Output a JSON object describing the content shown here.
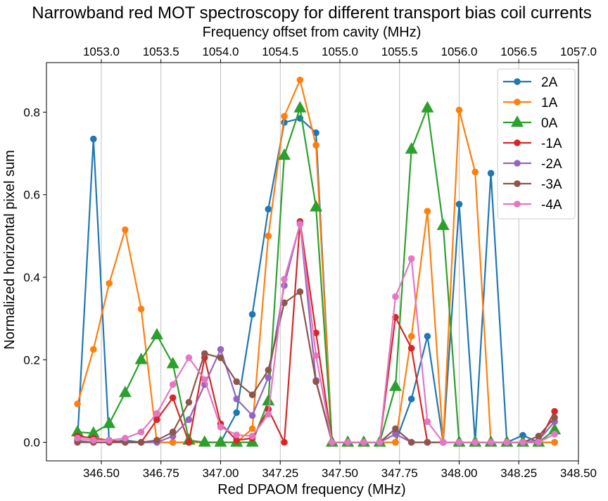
{
  "chart_data": {
    "type": "line",
    "title": "Narrowband red MOT spectroscopy for different transport bias coil currents",
    "xlabel": "Red DPAOM frequency (MHz)",
    "ylabel": "Normalized horizontal pixel sum",
    "x2label": "Frequency offset from cavity (MHz)",
    "xlim": [
      346.27,
      348.5
    ],
    "ylim": [
      -0.045,
      0.92
    ],
    "x2lim": [
      1052.54,
      1057.0
    ],
    "xticks": [
      346.5,
      346.75,
      347.0,
      347.25,
      347.5,
      347.75,
      348.0,
      348.25,
      348.5
    ],
    "xtick_labels": [
      "346.50",
      "346.75",
      "347.00",
      "347.25",
      "347.50",
      "347.75",
      "348.00",
      "348.25",
      "348.50"
    ],
    "yticks": [
      0.0,
      0.2,
      0.4,
      0.6,
      0.8
    ],
    "ytick_labels": [
      "0.0",
      "0.2",
      "0.4",
      "0.6",
      "0.8"
    ],
    "x2ticks": [
      1053.0,
      1053.5,
      1054.0,
      1054.5,
      1055.0,
      1055.5,
      1056.0,
      1056.5,
      1057.0
    ],
    "x2tick_labels": [
      "1053.0",
      "1053.5",
      "1054.0",
      "1054.5",
      "1055.0",
      "1055.5",
      "1056.0",
      "1056.5",
      "1057.0"
    ],
    "grid": "vertical lines at top-axis ticks",
    "legend_position": "top-right",
    "series": [
      {
        "name": "2A",
        "color": "#1f77b4",
        "marker": "circle",
        "x": [
          346.4,
          346.467,
          346.533,
          346.6,
          346.667,
          346.733,
          346.8,
          346.867,
          346.933,
          347.0,
          347.067,
          347.133,
          347.2,
          347.267,
          347.333,
          347.4,
          347.467,
          347.533,
          347.6,
          347.667,
          347.733,
          347.8,
          347.867,
          347.933,
          348.0,
          348.067,
          348.133,
          348.2,
          348.267,
          348.333,
          348.4
        ],
        "y": [
          0.005,
          0.735,
          0.0,
          0.005,
          0.0,
          0.0,
          0.0,
          0.0,
          0.0,
          0.0,
          0.072,
          0.31,
          0.565,
          0.775,
          0.785,
          0.75,
          0.0,
          0.0,
          0.0,
          0.0,
          0.0,
          0.105,
          0.257,
          0.0,
          0.577,
          0.0,
          0.652,
          0.0,
          0.017,
          0.0,
          0.0
        ]
      },
      {
        "name": "1A",
        "color": "#ff7f0e",
        "marker": "circle",
        "x": [
          346.4,
          346.467,
          346.533,
          346.6,
          346.667,
          346.733,
          346.8,
          346.867,
          346.933,
          347.0,
          347.067,
          347.133,
          347.2,
          347.267,
          347.333,
          347.4,
          347.467,
          347.533,
          347.6,
          347.667,
          347.733,
          347.8,
          347.867,
          347.933,
          348.0,
          348.067,
          348.133,
          348.2,
          348.267,
          348.333,
          348.4
        ],
        "y": [
          0.093,
          0.225,
          0.385,
          0.515,
          0.323,
          0.0,
          0.0,
          0.0,
          0.0,
          0.0,
          0.0,
          0.033,
          0.5,
          0.79,
          0.878,
          0.72,
          0.0,
          0.0,
          0.0,
          0.0,
          0.0,
          0.257,
          0.56,
          0.0,
          0.805,
          0.655,
          0.0,
          0.0,
          0.0,
          0.0,
          0.0
        ]
      },
      {
        "name": "0A",
        "color": "#2ca02c",
        "marker": "triangle",
        "x": [
          346.4,
          346.467,
          346.533,
          346.6,
          346.667,
          346.733,
          346.8,
          346.867,
          346.933,
          347.0,
          347.067,
          347.133,
          347.2,
          347.267,
          347.333,
          347.4,
          347.467,
          347.533,
          347.6,
          347.667,
          347.733,
          347.8,
          347.867,
          347.933,
          348.0,
          348.067,
          348.133,
          348.2,
          348.267,
          348.333,
          348.4
        ],
        "y": [
          0.025,
          0.022,
          0.045,
          0.12,
          0.2,
          0.26,
          0.19,
          0.005,
          0.0,
          0.0,
          0.0,
          0.0,
          0.1,
          0.695,
          0.81,
          0.57,
          0.0,
          0.0,
          0.0,
          0.0,
          0.135,
          0.71,
          0.81,
          0.525,
          0.0,
          0.0,
          0.0,
          0.0,
          0.0,
          0.0,
          0.03
        ]
      },
      {
        "name": "-1A",
        "color": "#d62728",
        "marker": "circle",
        "x": [
          346.4,
          346.467,
          346.533,
          346.6,
          346.667,
          346.733,
          346.8,
          346.867,
          346.933,
          347.0,
          347.067,
          347.133,
          347.2,
          347.267,
          347.333,
          347.4,
          347.467,
          347.533,
          347.6,
          347.667,
          347.733,
          347.8,
          347.867,
          347.933,
          348.0,
          348.067,
          348.133,
          348.2,
          348.267,
          348.333,
          348.4
        ],
        "y": [
          0.015,
          0.01,
          0.005,
          0.0,
          0.0,
          0.055,
          0.108,
          0.0,
          0.205,
          0.045,
          0.005,
          0.01,
          0.08,
          0.0,
          0.535,
          0.265,
          0.0,
          0.0,
          0.0,
          0.0,
          0.303,
          0.228,
          0.0,
          0.0,
          0.0,
          0.0,
          0.0,
          0.0,
          0.0,
          0.0,
          0.075
        ]
      },
      {
        "name": "-2A",
        "color": "#9467bd",
        "marker": "circle",
        "x": [
          346.4,
          346.467,
          346.533,
          346.6,
          346.667,
          346.733,
          346.8,
          346.867,
          346.933,
          347.0,
          347.067,
          347.133,
          347.2,
          347.267,
          347.333,
          347.4,
          347.467,
          347.533,
          347.6,
          347.667,
          347.733,
          347.8,
          347.867,
          347.933,
          348.0,
          348.067,
          348.133,
          348.2,
          348.267,
          348.333,
          348.4
        ],
        "y": [
          0.005,
          0.0,
          0.0,
          0.0,
          0.0,
          0.0,
          0.015,
          0.055,
          0.14,
          0.225,
          0.105,
          0.065,
          0.157,
          0.38,
          0.53,
          0.15,
          0.0,
          0.0,
          0.0,
          0.0,
          0.02,
          0.0,
          0.0,
          0.0,
          0.0,
          0.0,
          0.0,
          0.0,
          0.0,
          0.005,
          0.05
        ]
      },
      {
        "name": "-3A",
        "color": "#8c564b",
        "marker": "circle",
        "x": [
          346.4,
          346.467,
          346.533,
          346.6,
          346.667,
          346.733,
          346.8,
          346.867,
          346.933,
          347.0,
          347.067,
          347.133,
          347.2,
          347.267,
          347.333,
          347.4,
          347.467,
          347.533,
          347.6,
          347.667,
          347.733,
          347.8,
          347.867,
          347.933,
          348.0,
          348.067,
          348.133,
          348.2,
          348.267,
          348.333,
          348.4
        ],
        "y": [
          0.0,
          0.0,
          0.0,
          0.0,
          0.0,
          0.005,
          0.025,
          0.097,
          0.215,
          0.205,
          0.147,
          0.115,
          0.175,
          0.338,
          0.365,
          0.147,
          0.0,
          0.0,
          0.0,
          0.0,
          0.033,
          0.0,
          0.0,
          0.0,
          0.0,
          0.0,
          0.0,
          0.0,
          0.0,
          0.015,
          0.06
        ]
      },
      {
        "name": "-4A",
        "color": "#e377c2",
        "marker": "circle",
        "x": [
          346.4,
          346.467,
          346.533,
          346.6,
          346.667,
          346.733,
          346.8,
          346.867,
          346.933,
          347.0,
          347.067,
          347.133,
          347.2,
          347.267,
          347.333,
          347.4,
          347.467,
          347.533,
          347.6,
          347.667,
          347.733,
          347.8,
          347.867,
          347.933,
          348.0,
          348.067,
          348.133,
          348.2,
          348.267,
          348.333,
          348.4
        ],
        "y": [
          0.01,
          0.005,
          0.005,
          0.01,
          0.025,
          0.07,
          0.14,
          0.205,
          0.152,
          0.037,
          0.018,
          0.015,
          0.068,
          0.395,
          0.528,
          0.21,
          0.0,
          0.0,
          0.0,
          0.0,
          0.353,
          0.445,
          0.05,
          0.0,
          0.0,
          0.0,
          0.0,
          0.0,
          0.0,
          0.0,
          0.02
        ]
      }
    ]
  }
}
